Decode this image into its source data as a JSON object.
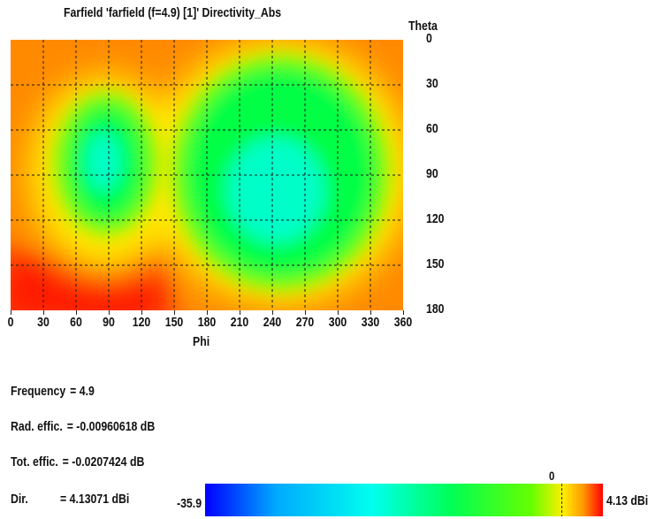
{
  "chart_data": {
    "type": "heatmap",
    "title": "Farfield 'farfield (f=4.9) [1]' Directivity_Abs",
    "xlabel": "Phi",
    "ylabel": "Theta",
    "x_ticks": [
      "0",
      "30",
      "60",
      "90",
      "120",
      "150",
      "180",
      "210",
      "240",
      "270",
      "300",
      "330",
      "360"
    ],
    "y_ticks": [
      "0",
      "30",
      "60",
      "90",
      "120",
      "150",
      "180"
    ],
    "xlim": [
      0,
      360
    ],
    "ylim": [
      0,
      180
    ],
    "grid": true,
    "colorscale": {
      "min_label": "-35.9",
      "max_label": "4.13 dBi",
      "marker_label": "0",
      "min": -35.9,
      "max": 4.13,
      "marker": 0,
      "colors": [
        "#0000ff",
        "#00aaff",
        "#00ffee",
        "#00ff55",
        "#66ff00",
        "#ffee00",
        "#ff9900",
        "#ff0000"
      ]
    }
  },
  "info": {
    "frequency_label": "Frequency",
    "frequency_value": "= 4.9",
    "rad_label": "Rad. effic.",
    "rad_value": "= -0.00960618 dB",
    "tot_label": "Tot. effic.",
    "tot_value": "= -0.0207424 dB",
    "dir_label": "Dir.",
    "dir_value": "= 4.13071 dBi"
  }
}
